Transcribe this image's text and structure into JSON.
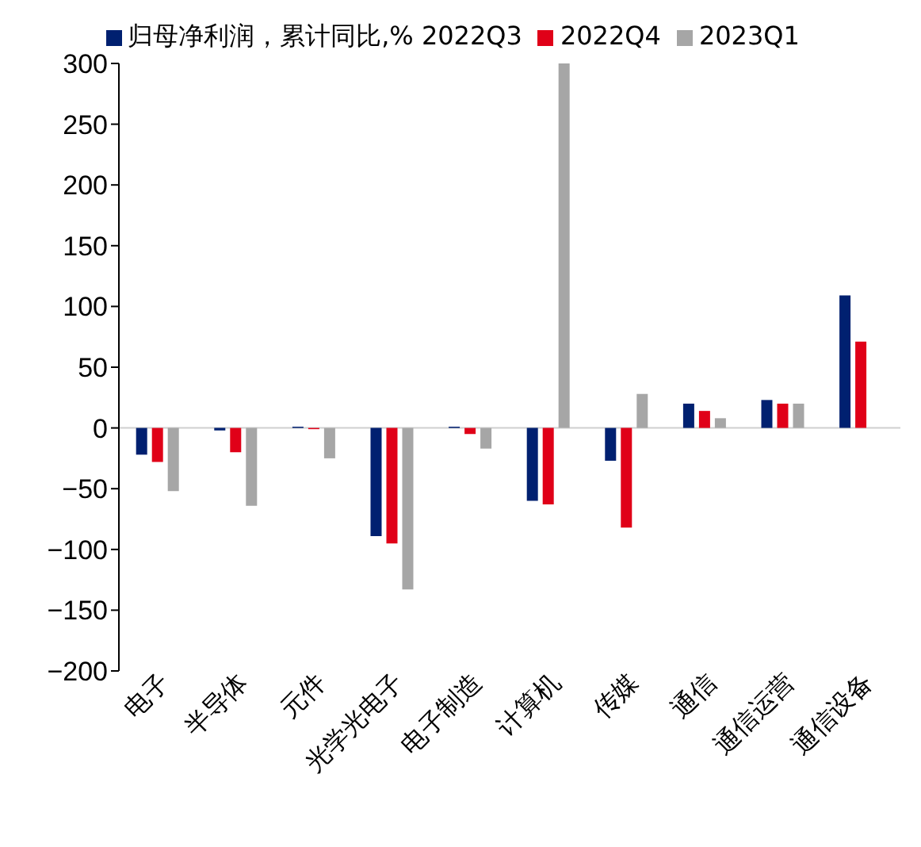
{
  "chart_data": {
    "type": "bar",
    "categories": [
      "电子",
      "半导体",
      "元件",
      "光学光电子",
      "电子制造",
      "计算机",
      "传媒",
      "通信",
      "通信运营",
      "通信设备"
    ],
    "series": [
      {
        "name": "归母净利润，累计同比,% 2022Q3",
        "color": "#002070",
        "values": [
          -22,
          -2,
          1,
          -89,
          1,
          -60,
          -27,
          20,
          23,
          109
        ]
      },
      {
        "name": "2022Q4",
        "color": "#e00018",
        "values": [
          -28,
          -20,
          -1,
          -95,
          -5,
          -63,
          -82,
          14,
          20,
          71
        ]
      },
      {
        "name": "2023Q1",
        "color": "#a6a6a6",
        "values": [
          -52,
          -64,
          -25,
          -133,
          -17,
          300,
          28,
          8,
          20,
          null
        ]
      }
    ],
    "ylim": [
      -200,
      300
    ],
    "yticks": [
      -200,
      -150,
      -100,
      -50,
      0,
      50,
      100,
      150,
      200,
      250,
      300
    ],
    "legend": "top"
  }
}
